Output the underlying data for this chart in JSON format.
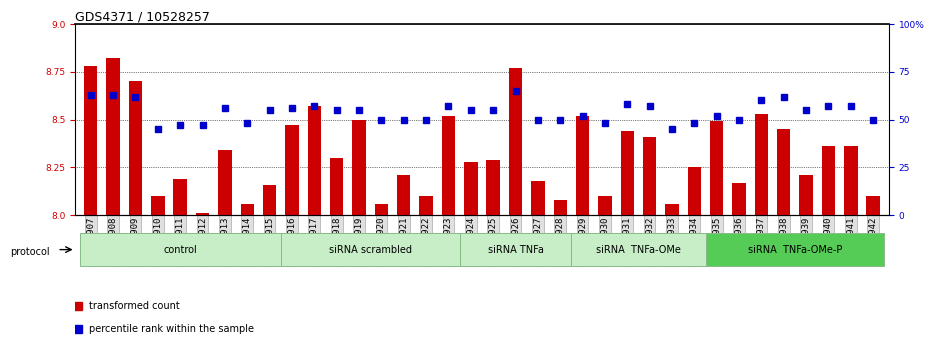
{
  "title": "GDS4371 / 10528257",
  "samples": [
    "GSM790907",
    "GSM790908",
    "GSM790909",
    "GSM790910",
    "GSM790911",
    "GSM790912",
    "GSM790913",
    "GSM790914",
    "GSM790915",
    "GSM790916",
    "GSM790917",
    "GSM790918",
    "GSM790919",
    "GSM790920",
    "GSM790921",
    "GSM790922",
    "GSM790923",
    "GSM790924",
    "GSM790925",
    "GSM790926",
    "GSM790927",
    "GSM790928",
    "GSM790929",
    "GSM790930",
    "GSM790931",
    "GSM790932",
    "GSM790933",
    "GSM790934",
    "GSM790935",
    "GSM790936",
    "GSM790937",
    "GSM790938",
    "GSM790939",
    "GSM790940",
    "GSM790941",
    "GSM790942"
  ],
  "bar_values": [
    8.78,
    8.82,
    8.7,
    8.1,
    8.19,
    8.01,
    8.34,
    8.06,
    8.16,
    8.47,
    8.57,
    8.3,
    8.5,
    8.06,
    8.21,
    8.1,
    8.52,
    8.28,
    8.29,
    8.77,
    8.18,
    8.08,
    8.52,
    8.1,
    8.44,
    8.41,
    8.06,
    8.25,
    8.49,
    8.17,
    8.53,
    8.45,
    8.21,
    8.36,
    8.36,
    8.1
  ],
  "percentile_values": [
    63,
    63,
    62,
    45,
    47,
    47,
    56,
    48,
    55,
    56,
    57,
    55,
    55,
    50,
    50,
    50,
    57,
    55,
    55,
    65,
    50,
    50,
    52,
    48,
    58,
    57,
    45,
    48,
    52,
    50,
    60,
    62,
    55,
    57,
    57,
    50
  ],
  "groups": [
    {
      "label": "control",
      "start": 0,
      "end": 9,
      "light": true
    },
    {
      "label": "siRNA scrambled",
      "start": 9,
      "end": 17,
      "light": true
    },
    {
      "label": "siRNA TNFa",
      "start": 17,
      "end": 22,
      "light": true
    },
    {
      "label": "siRNA  TNFa-OMe",
      "start": 22,
      "end": 28,
      "light": true
    },
    {
      "label": "siRNA  TNFa-OMe-P",
      "start": 28,
      "end": 36,
      "light": false
    }
  ],
  "group_color_light": "#c8eec8",
  "group_color_dark": "#55cc55",
  "group_border": "#88bb88",
  "ylim": [
    8.0,
    9.0
  ],
  "y2lim": [
    0,
    100
  ],
  "bar_color": "#cc0000",
  "dot_color": "#0000cc",
  "title_fontsize": 9,
  "tick_fontsize": 6.5,
  "label_fontsize": 7,
  "protocol_label": "protocol",
  "legend1": "transformed count",
  "legend2": "percentile rank within the sample",
  "yticks": [
    8.0,
    8.25,
    8.5,
    8.75,
    9.0
  ],
  "y2ticks": [
    0,
    25,
    50,
    75,
    100
  ],
  "y2ticklabels": [
    "0",
    "25",
    "50",
    "75",
    "100%"
  ]
}
